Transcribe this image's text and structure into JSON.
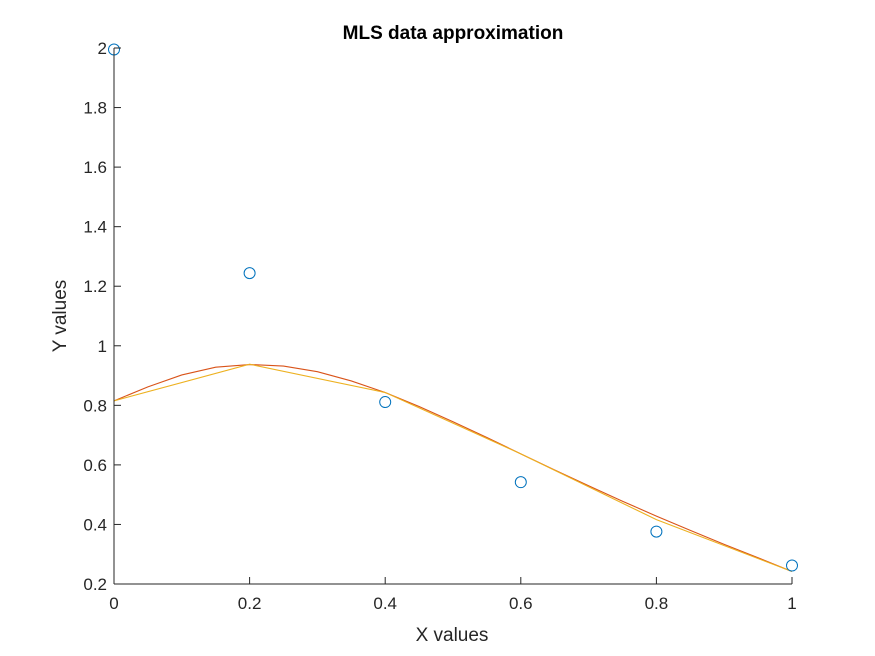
{
  "chart_data": {
    "type": "line",
    "title": "MLS data approximation",
    "xlabel": "X values",
    "ylabel": "Y values",
    "xlim": [
      0,
      1
    ],
    "ylim": [
      0.2,
      2
    ],
    "xticks": [
      0,
      0.2,
      0.4,
      0.6,
      0.8,
      1
    ],
    "xtick_labels": [
      "0",
      "0.2",
      "0.4",
      "0.6",
      "0.8",
      "1"
    ],
    "yticks": [
      0.2,
      0.4,
      0.6,
      0.8,
      1,
      1.2,
      1.4,
      1.6,
      1.8,
      2
    ],
    "ytick_labels": [
      "0.2",
      "0.4",
      "0.6",
      "0.8",
      "1",
      "1.2",
      "1.4",
      "1.6",
      "1.8",
      "2"
    ],
    "grid": false,
    "legend": "none",
    "series": [
      {
        "kind": "scatter",
        "marker": "circle",
        "color": "#0072BD",
        "x": [
          0,
          0.2,
          0.4,
          0.6,
          0.8,
          1
        ],
        "y": [
          1.995,
          1.244,
          0.811,
          0.542,
          0.376,
          0.262
        ]
      },
      {
        "kind": "line",
        "color": "#D95319",
        "x": [
          0,
          0.05,
          0.1,
          0.15,
          0.2,
          0.25,
          0.3,
          0.35,
          0.4,
          0.45,
          0.5,
          0.55,
          0.6,
          0.65,
          0.7,
          0.75,
          0.8,
          0.85,
          0.9,
          0.95,
          1
        ],
        "y": [
          0.815,
          0.862,
          0.902,
          0.928,
          0.937,
          0.932,
          0.913,
          0.882,
          0.843,
          0.796,
          0.745,
          0.692,
          0.637,
          0.583,
          0.53,
          0.478,
          0.428,
          0.38,
          0.333,
          0.288,
          0.242
        ]
      },
      {
        "kind": "line",
        "color": "#EDB120",
        "x": [
          0,
          0.2,
          0.4,
          0.6,
          0.8,
          1
        ],
        "y": [
          0.815,
          0.938,
          0.843,
          0.637,
          0.416,
          0.242
        ]
      }
    ]
  }
}
